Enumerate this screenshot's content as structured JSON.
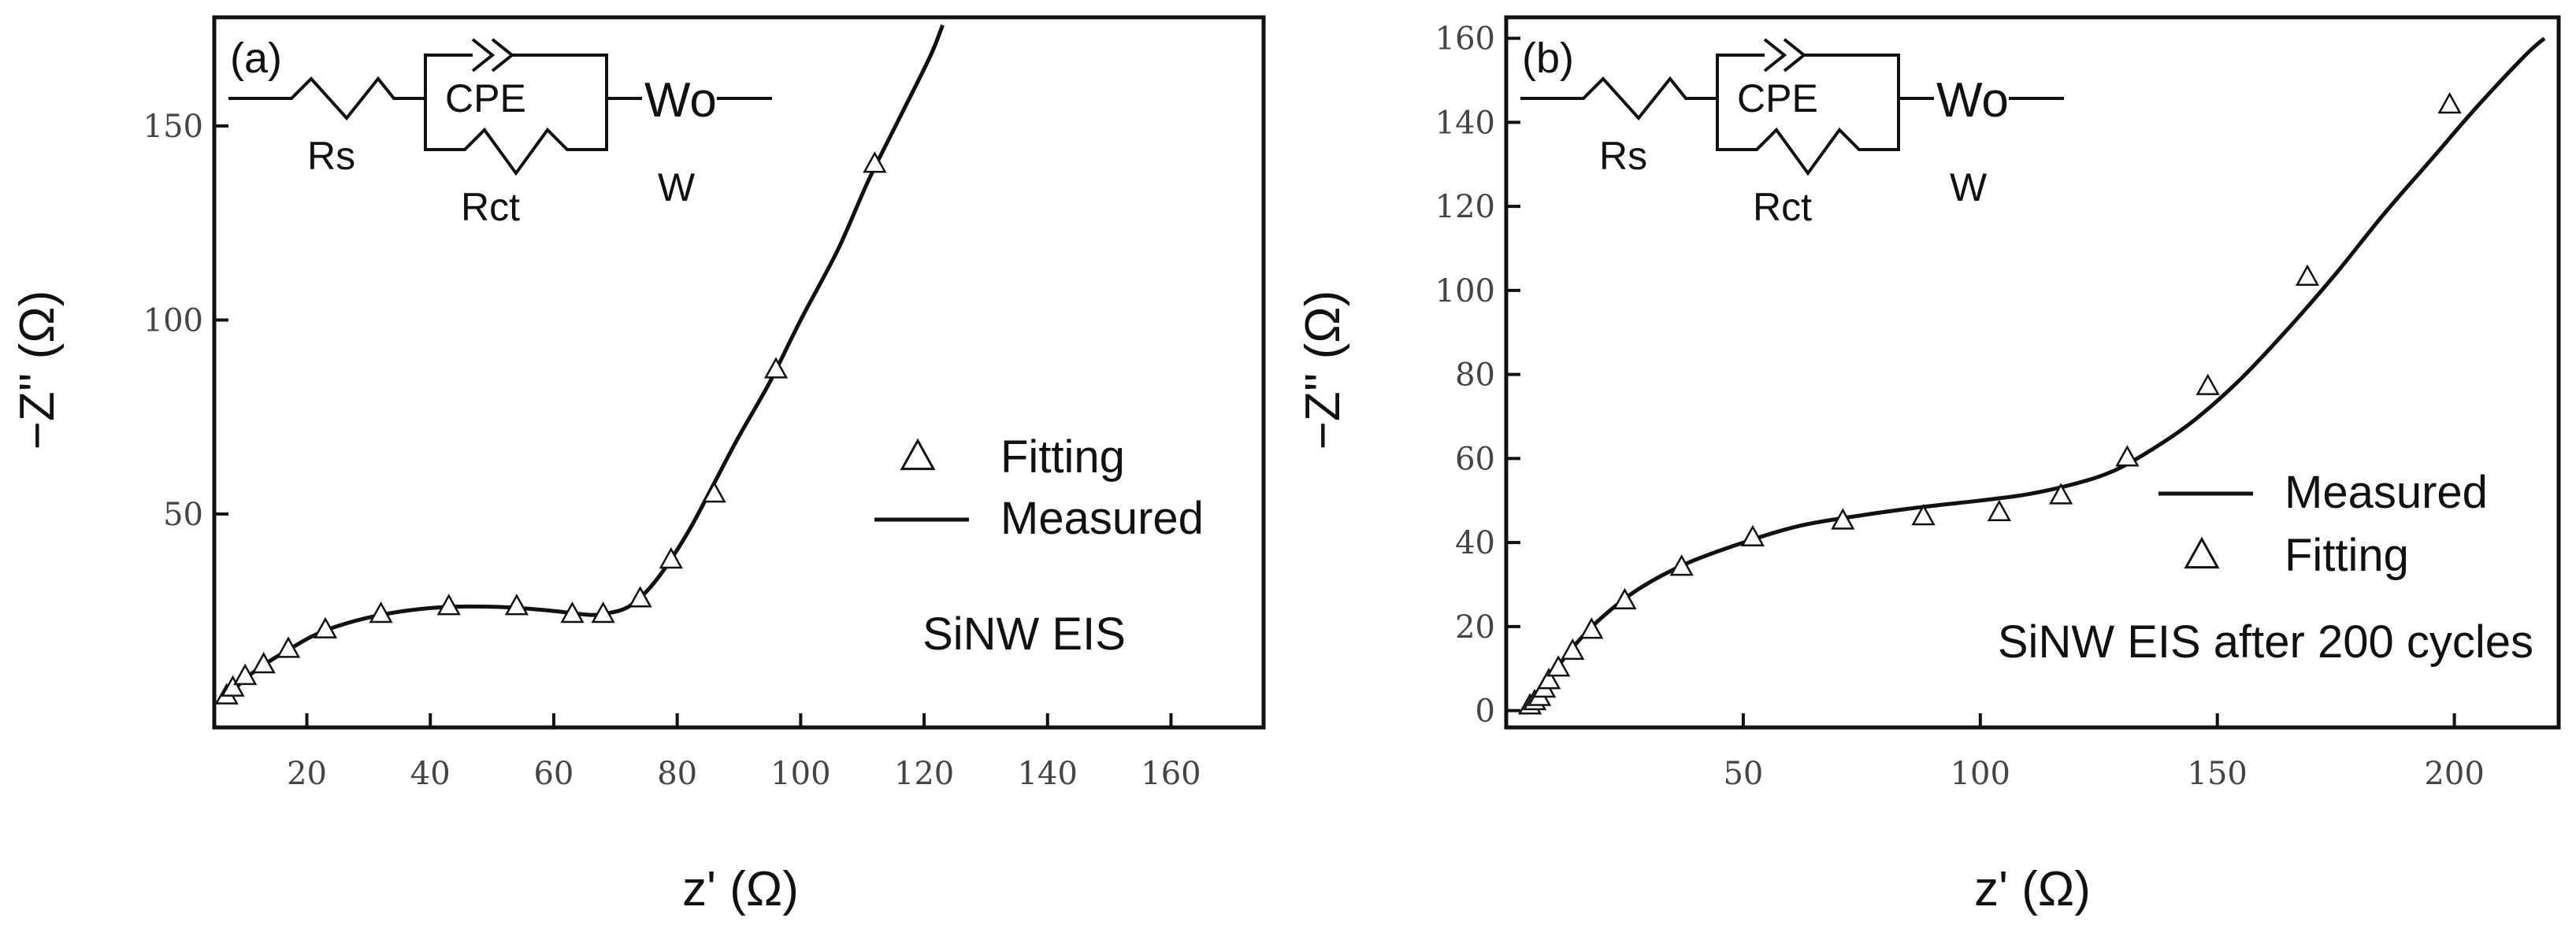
{
  "chart_data": [
    {
      "type": "line",
      "panel_label": "(a)",
      "title": "SiNW EIS",
      "xlabel": "z' (Ω)",
      "ylabel": "−Z'' (Ω)",
      "xlim": [
        5,
        175
      ],
      "ylim": [
        -5,
        178
      ],
      "xticks": [
        20,
        40,
        60,
        80,
        100,
        120,
        140,
        160
      ],
      "yticks": [
        50,
        100,
        150
      ],
      "legend_position": "center-right",
      "legend": [
        "Fitting",
        "Measured"
      ],
      "circuit_labels": [
        "Rs",
        "CPE",
        "Rct",
        "Wo",
        "W"
      ],
      "series": [
        {
          "name": "Measured",
          "style": "line",
          "x": [
            7,
            9,
            12,
            17,
            23,
            32,
            42,
            52,
            60,
            66,
            69,
            72,
            75,
            78,
            82,
            86,
            90,
            95,
            100,
            106,
            111,
            116,
            121,
            123
          ],
          "y": [
            2,
            6,
            10,
            15,
            20,
            24,
            26,
            26,
            25,
            24,
            24.5,
            26,
            30,
            36,
            46,
            58,
            70,
            84,
            100,
            118,
            136,
            152,
            168,
            176
          ]
        },
        {
          "name": "Fitting",
          "style": "triangle",
          "x": [
            7,
            8,
            10,
            13,
            17,
            23,
            32,
            43,
            54,
            63,
            68,
            74,
            79,
            86,
            96,
            112
          ],
          "y": [
            3,
            5,
            8,
            11,
            15,
            20,
            24,
            26,
            26,
            24,
            24,
            28,
            38,
            55,
            87,
            140
          ]
        }
      ]
    },
    {
      "type": "line",
      "panel_label": "(b)",
      "title": "SiNW EIS after 200 cycles",
      "xlabel": "z' (Ω)",
      "ylabel": "−Z'' (Ω)",
      "xlim": [
        0,
        222
      ],
      "ylim": [
        -4,
        165
      ],
      "xticks": [
        50,
        100,
        150,
        200
      ],
      "yticks": [
        0,
        20,
        40,
        60,
        80,
        100,
        120,
        140,
        160
      ],
      "legend_position": "center-right",
      "legend": [
        "Measured",
        "Fitting"
      ],
      "circuit_labels": [
        "Rs",
        "CPE",
        "Rct",
        "Wo",
        "W"
      ],
      "series": [
        {
          "name": "Measured",
          "style": "line",
          "x": [
            5,
            7,
            10,
            14,
            20,
            28,
            38,
            50,
            62,
            75,
            88,
            100,
            110,
            120,
            128,
            136,
            145,
            155,
            165,
            175,
            185,
            195,
            205,
            215,
            219
          ],
          "y": [
            0,
            4,
            9,
            15,
            22,
            29,
            35,
            40,
            44,
            46.5,
            48.5,
            50,
            51.5,
            54,
            57,
            62,
            69,
            79,
            91,
            104,
            118,
            131,
            144,
            156,
            160
          ]
        },
        {
          "name": "Fitting",
          "style": "triangle",
          "x": [
            5,
            6,
            7,
            8,
            9,
            11,
            14,
            18,
            25,
            37,
            52,
            71,
            88,
            104,
            117,
            131,
            148,
            169,
            199
          ],
          "y": [
            1,
            2,
            3,
            5,
            7,
            10,
            14,
            19,
            26,
            34,
            41,
            45,
            46,
            47,
            51,
            60,
            77,
            103,
            144
          ]
        }
      ]
    }
  ]
}
